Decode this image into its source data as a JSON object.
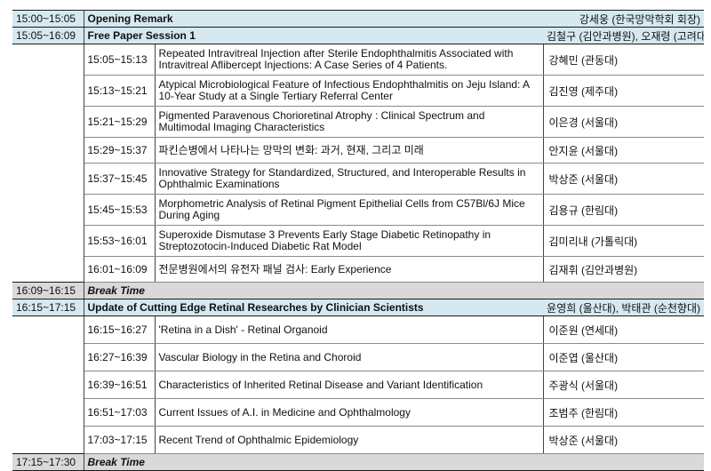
{
  "session1": {
    "opening": {
      "time": "15:00~15:05",
      "title": "Opening Remark",
      "chair": "강세웅 (한국망막학회 회장)"
    },
    "paper": {
      "time": "15:05~16:09",
      "title": "Free Paper Session 1",
      "chair": "김철구 (김안과병원), 오재령 (고려대)"
    },
    "talks": [
      {
        "time": "15:05~15:13",
        "title": "Repeated Intravitreal Injection after Sterile Endophthalmitis Associated with Intravitreal Aflibercept Injections: A Case Series of 4 Patients.",
        "speaker": "강혜민 (관동대)"
      },
      {
        "time": "15:13~15:21",
        "title": "Atypical Microbiological Feature of Infectious Endophthalmitis on Jeju Island: A 10-Year Study at a Single Tertiary Referral Center",
        "speaker": "김진영 (제주대)"
      },
      {
        "time": "15:21~15:29",
        "title": "Pigmented Paravenous Chorioretinal Atrophy : Clinical Spectrum and Multimodal Imaging Characteristics",
        "speaker": "이은경 (서울대)"
      },
      {
        "time": "15:29~15:37",
        "title": "파킨슨병에서 나타나는 망막의 변화: 과거, 현재, 그리고 미래",
        "speaker": "안지윤 (서울대)"
      },
      {
        "time": "15:37~15:45",
        "title": "Innovative Strategy for Standardized, Structured, and Interoperable Results in Ophthalmic Examinations",
        "speaker": "박상준 (서울대)"
      },
      {
        "time": "15:45~15:53",
        "title": "Morphometric Analysis of Retinal Pigment Epithelial Cells from C57Bl/6J Mice During Aging",
        "speaker": "김용규 (한림대)"
      },
      {
        "time": "15:53~16:01",
        "title": "Superoxide Dismutase 3 Prevents Early Stage Diabetic Retinopathy in Streptozotocin-Induced Diabetic Rat Model",
        "speaker": "김미리내 (가톨릭대)"
      },
      {
        "time": "16:01~16:09",
        "title": "전문병원에서의 유전자 패널 검사: Early Experience",
        "speaker": "김재휘 (김안과병원)"
      }
    ]
  },
  "break1": {
    "time": "16:09~16:15",
    "title": "Break Time"
  },
  "session2": {
    "header": {
      "time": "16:15~17:15",
      "title": "Update of Cutting Edge Retinal Researches by Clinician Scientists",
      "chair": "윤영희 (울산대), 박태관 (순천향대)"
    },
    "talks": [
      {
        "time": "16:15~16:27",
        "title": "'Retina in a Dish' - Retinal Organoid",
        "speaker": "이준원 (연세대)"
      },
      {
        "time": "16:27~16:39",
        "title": "Vascular Biology in the Retina and Choroid",
        "speaker": "이준엽 (울산대)"
      },
      {
        "time": "16:39~16:51",
        "title": "Characteristics of Inherited Retinal Disease and Variant Identification",
        "speaker": "주광식 (서울대)"
      },
      {
        "time": "16:51~17:03",
        "title": "Current Issues of A.I. in Medicine and Ophthalmology",
        "speaker": "조범주 (한림대)"
      },
      {
        "time": "17:03~17:15",
        "title": "Recent Trend of Ophthalmic Epidemiology",
        "speaker": "박상준 (서울대)"
      }
    ]
  },
  "break2": {
    "time": "17:15~17:30",
    "title": "Break Time"
  }
}
